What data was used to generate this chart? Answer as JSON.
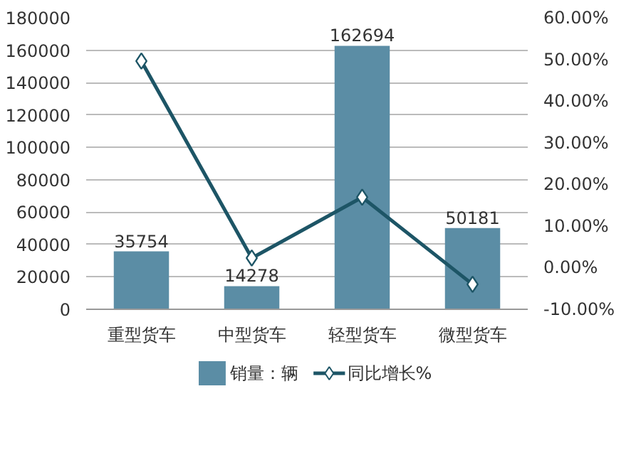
{
  "chart_data": {
    "type": "bar",
    "categories": [
      "重型货车",
      "中型货车",
      "轻型货车",
      "微型货车"
    ],
    "series": [
      {
        "name": "销量：辆",
        "color": "#5b8da5",
        "values": [
          35754,
          14278,
          162694,
          50181
        ],
        "value_labels": [
          "35754",
          "14278",
          "162694",
          "50181"
        ]
      },
      {
        "name": "同比增长%",
        "type": "line",
        "axis": "y2",
        "color": "#1d5566",
        "marker": "diamond",
        "values": [
          49.6,
          2.3,
          16.9,
          -4.0
        ]
      }
    ],
    "ylim": [
      0,
      180000
    ],
    "yticks": [
      0,
      20000,
      40000,
      60000,
      80000,
      100000,
      120000,
      140000,
      160000,
      180000
    ],
    "y2lim": [
      -10,
      60
    ],
    "y2ticks": [
      {
        "value": -10,
        "label": "-10.00%"
      },
      {
        "value": 0,
        "label": "0.00%"
      },
      {
        "value": 10,
        "label": "10.00%"
      },
      {
        "value": 20,
        "label": "20.00%"
      },
      {
        "value": 30,
        "label": "30.00%"
      },
      {
        "value": 40,
        "label": "40.00%"
      },
      {
        "value": 50,
        "label": "50.00%"
      },
      {
        "value": 60,
        "label": "60.00%"
      }
    ],
    "grid": "y",
    "legend": "bottom"
  }
}
